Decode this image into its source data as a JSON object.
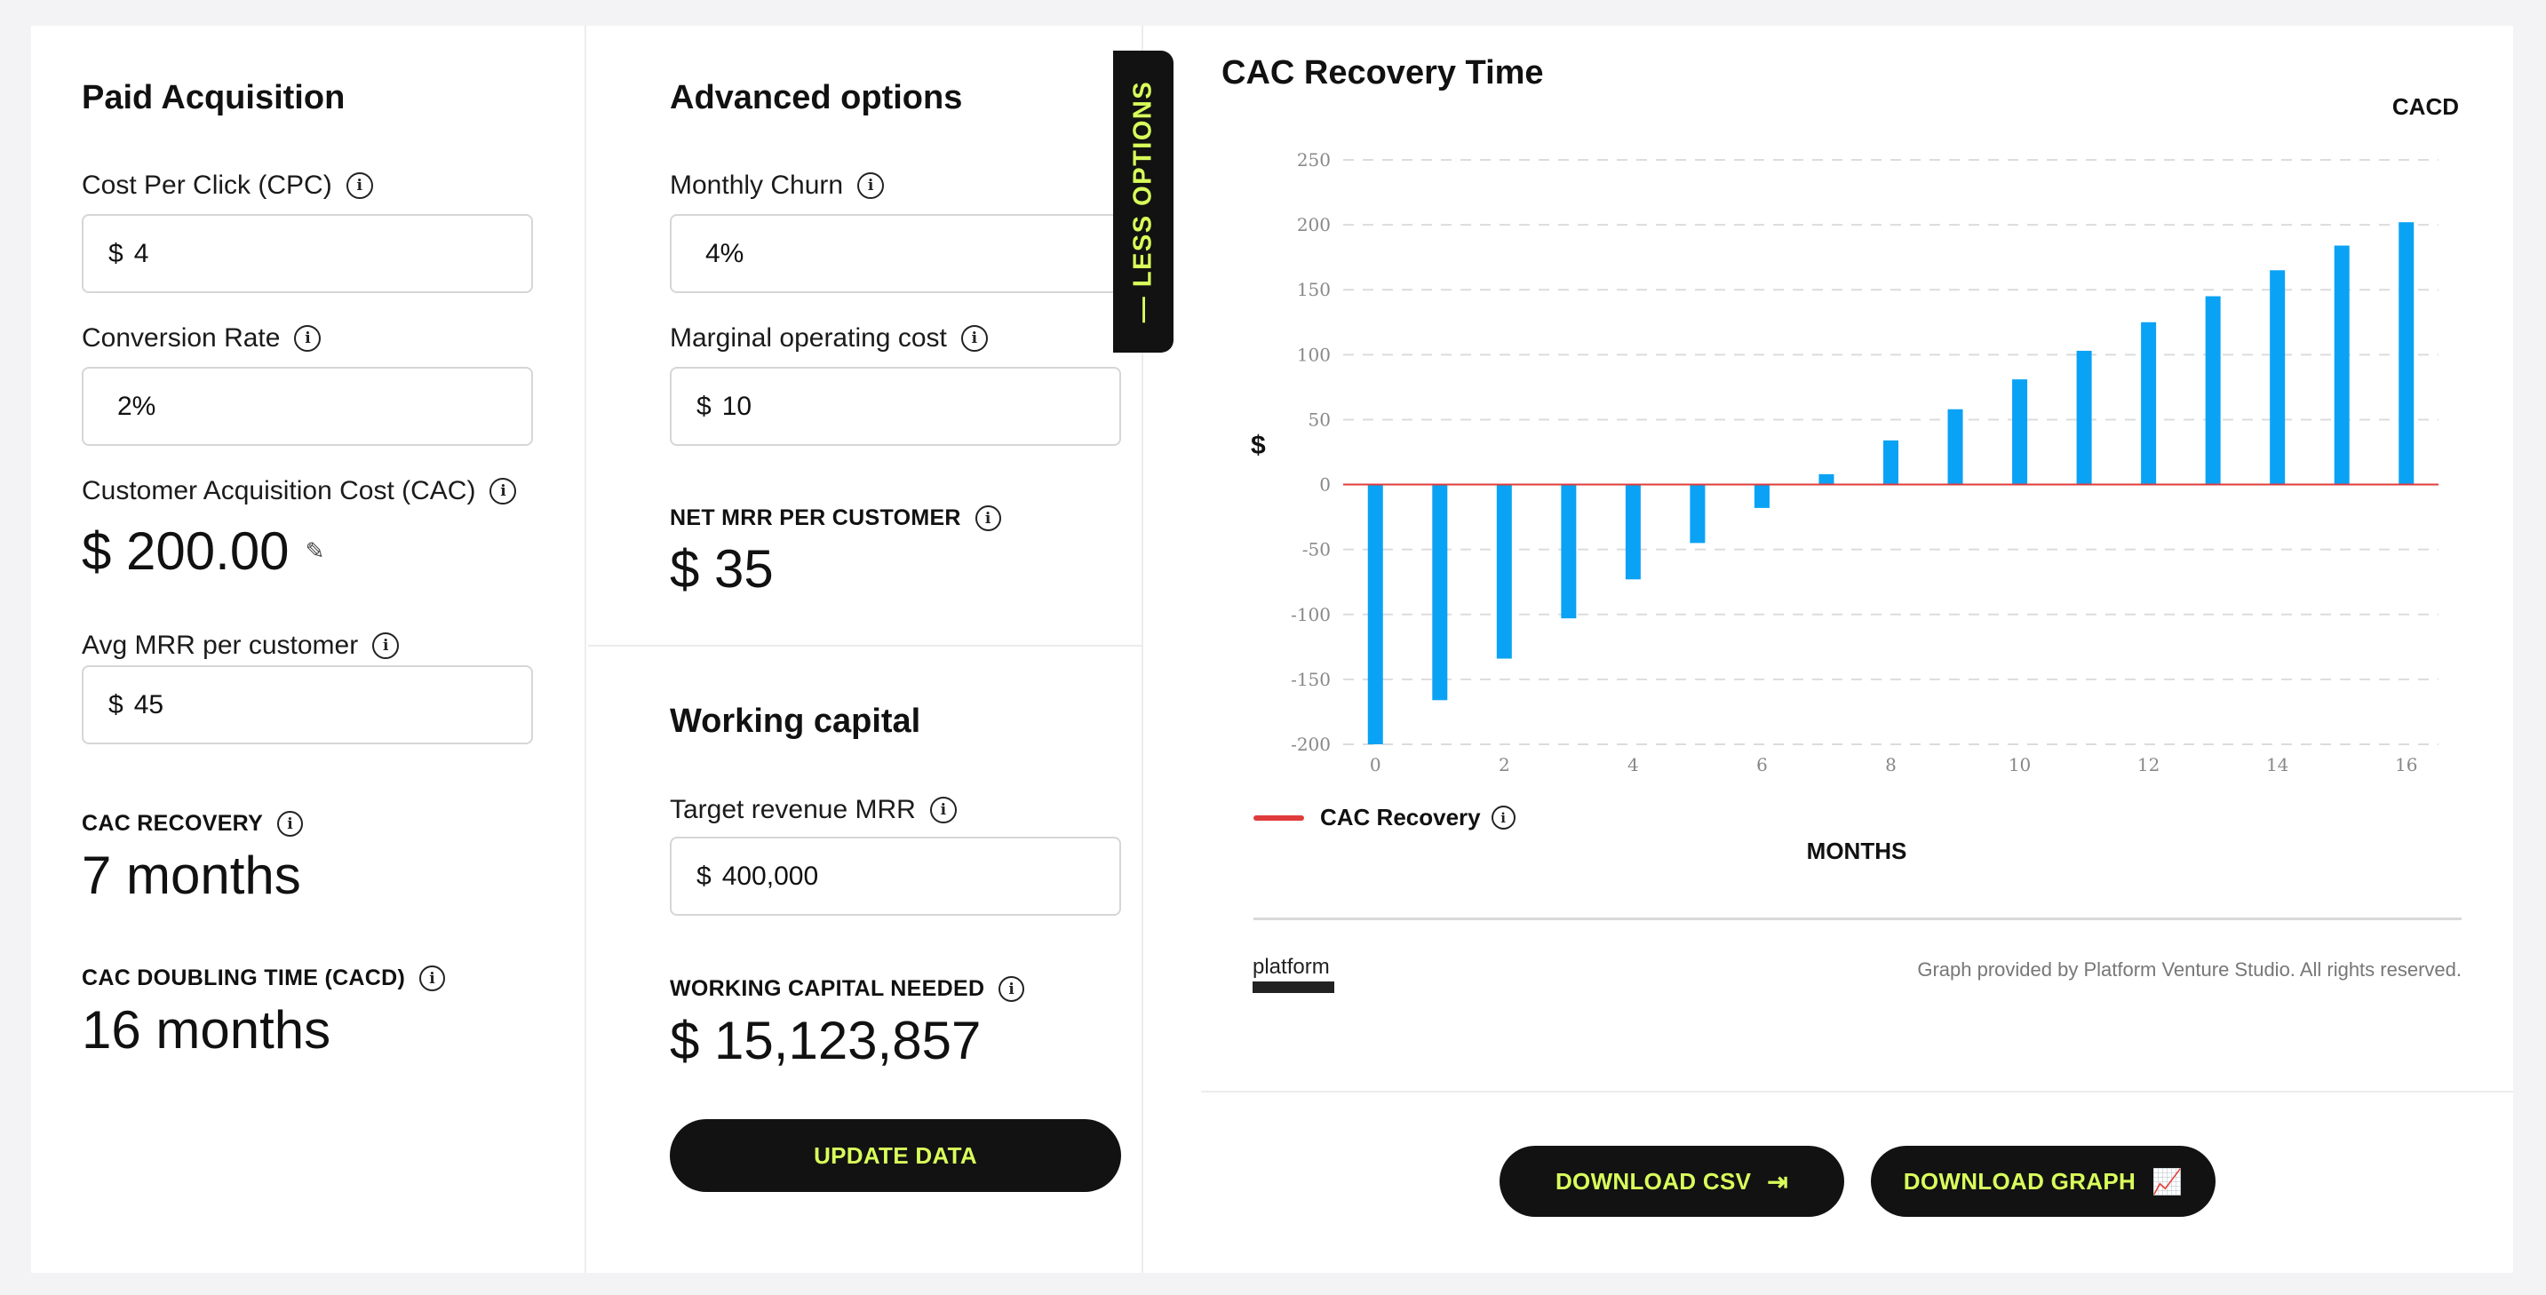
{
  "paid": {
    "title": "Paid Acquisition",
    "cpc_label": "Cost Per Click (CPC)",
    "cpc_currency": "$",
    "cpc_value": "4",
    "conv_label": "Conversion Rate",
    "conv_value": "2%",
    "cac_label": "Customer Acquisition Cost (CAC)",
    "cac_value": "$ 200.00",
    "mrr_label": "Avg MRR per customer",
    "mrr_currency": "$",
    "mrr_value": "45",
    "recovery_label": "CAC RECOVERY",
    "recovery_value": "7 months",
    "doubling_label": "CAC DOUBLING TIME (CACD)",
    "doubling_value": "16 months"
  },
  "advanced": {
    "title": "Advanced options",
    "churn_label": "Monthly Churn",
    "churn_value": "4%",
    "opcost_label": "Marginal operating cost",
    "opcost_currency": "$",
    "opcost_value": "10",
    "netmrr_label": "NET MRR PER CUSTOMER",
    "netmrr_value": "$ 35"
  },
  "working": {
    "title": "Working capital",
    "target_label": "Target revenue MRR",
    "target_currency": "$",
    "target_value": "400,000",
    "needed_label": "WORKING CAPITAL NEEDED",
    "needed_value": "$ 15,123,857",
    "update_label": "UPDATE DATA"
  },
  "less_options_label": "— LESS OPTIONS",
  "chart_panel": {
    "title": "CAC Recovery Time",
    "cacd_tag": "CACD",
    "legend_label": "CAC Recovery",
    "logo_text": "platform",
    "credit": "Graph provided by Platform Venture Studio. All rights reserved.",
    "download_csv": "DOWNLOAD CSV",
    "download_graph": "DOWNLOAD GRAPH"
  },
  "icons": {
    "info": "info-circle-icon",
    "edit": "edit-icon",
    "csv": "file-export-icon",
    "graph": "line-chart-icon"
  },
  "colors": {
    "accent": "#d9ff5b",
    "bar": "#0aa2f5",
    "zero_line": "#e03b3b",
    "button": "#121212"
  },
  "chart_data": {
    "type": "bar",
    "title": "CAC Recovery Time",
    "xlabel": "MONTHS",
    "ylabel": "$",
    "x": [
      0,
      1,
      2,
      3,
      4,
      5,
      6,
      7,
      8,
      9,
      10,
      11,
      12,
      13,
      14,
      15,
      16
    ],
    "series": [
      {
        "name": "CAC Recovery",
        "values": [
          -200,
          -166,
          -134,
          -103,
          -73,
          -45,
          -18,
          8,
          34,
          58,
          81,
          103,
          125,
          145,
          165,
          184,
          202
        ]
      }
    ],
    "xticks": [
      0,
      2,
      4,
      6,
      8,
      10,
      12,
      14,
      16
    ],
    "yticks": [
      -200,
      -150,
      -100,
      -50,
      0,
      50,
      100,
      150,
      200,
      250
    ],
    "ylim": [
      -200,
      250
    ],
    "xlim": [
      -0.5,
      16.5
    ],
    "grid": true
  }
}
